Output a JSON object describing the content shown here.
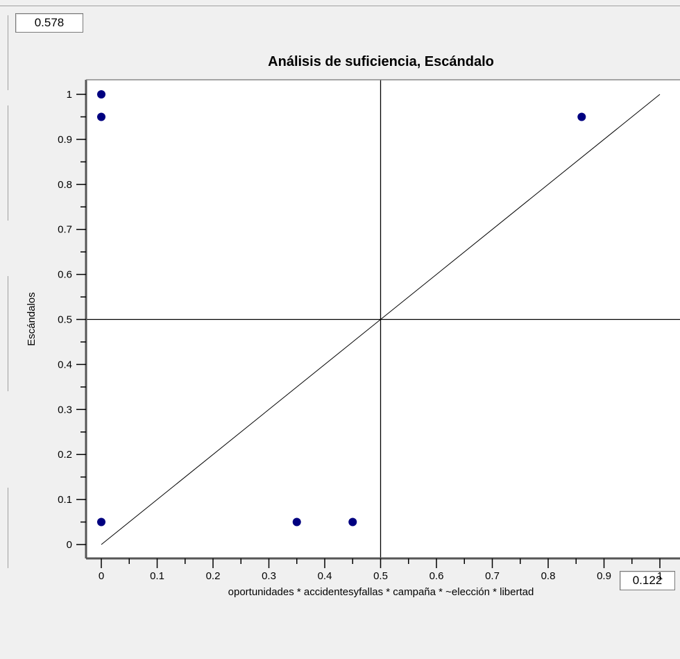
{
  "consistency_value": "0.578",
  "coverage_value": "0.122",
  "chart_data": {
    "type": "scatter",
    "title": "Análisis de suficiencia, Escándalo",
    "xlabel": "oportunidades * accidentesyfallas * campaña * ~elección * libertad",
    "ylabel": "Escándalos",
    "xlim": [
      0,
      1
    ],
    "ylim": [
      0,
      1
    ],
    "x_ticks": [
      "0",
      "0.1",
      "0.2",
      "0.3",
      "0.4",
      "0.5",
      "0.6",
      "0.7",
      "0.8",
      "0.9",
      "1"
    ],
    "y_ticks": [
      "0",
      "0.1",
      "0.2",
      "0.3",
      "0.4",
      "0.5",
      "0.6",
      "0.7",
      "0.8",
      "0.9",
      "1"
    ],
    "points": [
      {
        "x": 0,
        "y": 1
      },
      {
        "x": 0,
        "y": 0.95
      },
      {
        "x": 0.86,
        "y": 0.95
      },
      {
        "x": 0,
        "y": 0.05
      },
      {
        "x": 0.35,
        "y": 0.05
      },
      {
        "x": 0.45,
        "y": 0.05
      }
    ],
    "reference_lines": {
      "diagonal": true,
      "x_mid": 0.5,
      "y_mid": 0.5
    },
    "point_color": "#000080",
    "grid": false,
    "legend": "none"
  }
}
